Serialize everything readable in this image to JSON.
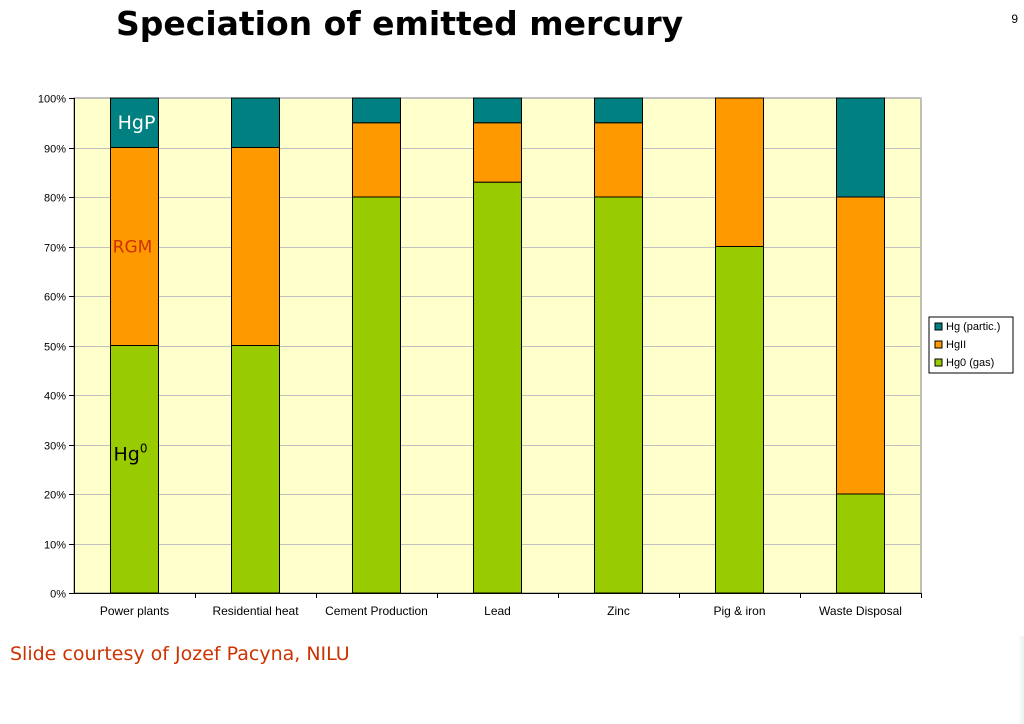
{
  "slide": {
    "title": "Speciation of emitted mercury",
    "page_number": "9",
    "credit": "Slide courtesy of Jozef Pacyna, NILU"
  },
  "colors": {
    "plot_background": "#ffffcc",
    "hg0": "#99cc00",
    "hgii": "#ff9900",
    "hgp": "#008080",
    "gridline": "#c0c0c0",
    "credit_text": "#cc3300"
  },
  "chart_data": {
    "type": "bar",
    "stacked": true,
    "title": "",
    "xlabel": "",
    "ylabel": "",
    "ylim": [
      0,
      100
    ],
    "y_ticks": [
      0,
      10,
      20,
      30,
      40,
      50,
      60,
      70,
      80,
      90,
      100
    ],
    "y_tick_labels": [
      "0%",
      "10%",
      "20%",
      "30%",
      "40%",
      "50%",
      "60%",
      "70%",
      "80%",
      "90%",
      "100%"
    ],
    "grid": true,
    "legend_position": "right",
    "categories": [
      "Power plants",
      "Residential heat",
      "Cement Production",
      "Lead",
      "Zinc",
      "Pig & iron",
      "Waste Disposal"
    ],
    "series": [
      {
        "name": "Hg0 (gas)",
        "color": "#99cc00",
        "values": [
          50,
          50,
          80,
          83,
          80,
          70,
          20
        ]
      },
      {
        "name": "HgII",
        "color": "#ff9900",
        "values": [
          40,
          40,
          15,
          12,
          15,
          30,
          60
        ]
      },
      {
        "name": "Hg (partic.)",
        "color": "#008080",
        "values": [
          10,
          10,
          5,
          5,
          5,
          0,
          20
        ]
      }
    ],
    "legend_order": [
      "Hg (partic.)",
      "HgII",
      "Hg0 (gas)"
    ],
    "annotations": [
      {
        "text": "HgP",
        "category": "Power plants",
        "color": "#ffffff"
      },
      {
        "text": "RGM",
        "category": "Power plants",
        "color": "#cc3300"
      },
      {
        "text": "Hg",
        "superscript": "0",
        "category": "Power plants",
        "color": "#000000"
      }
    ]
  }
}
